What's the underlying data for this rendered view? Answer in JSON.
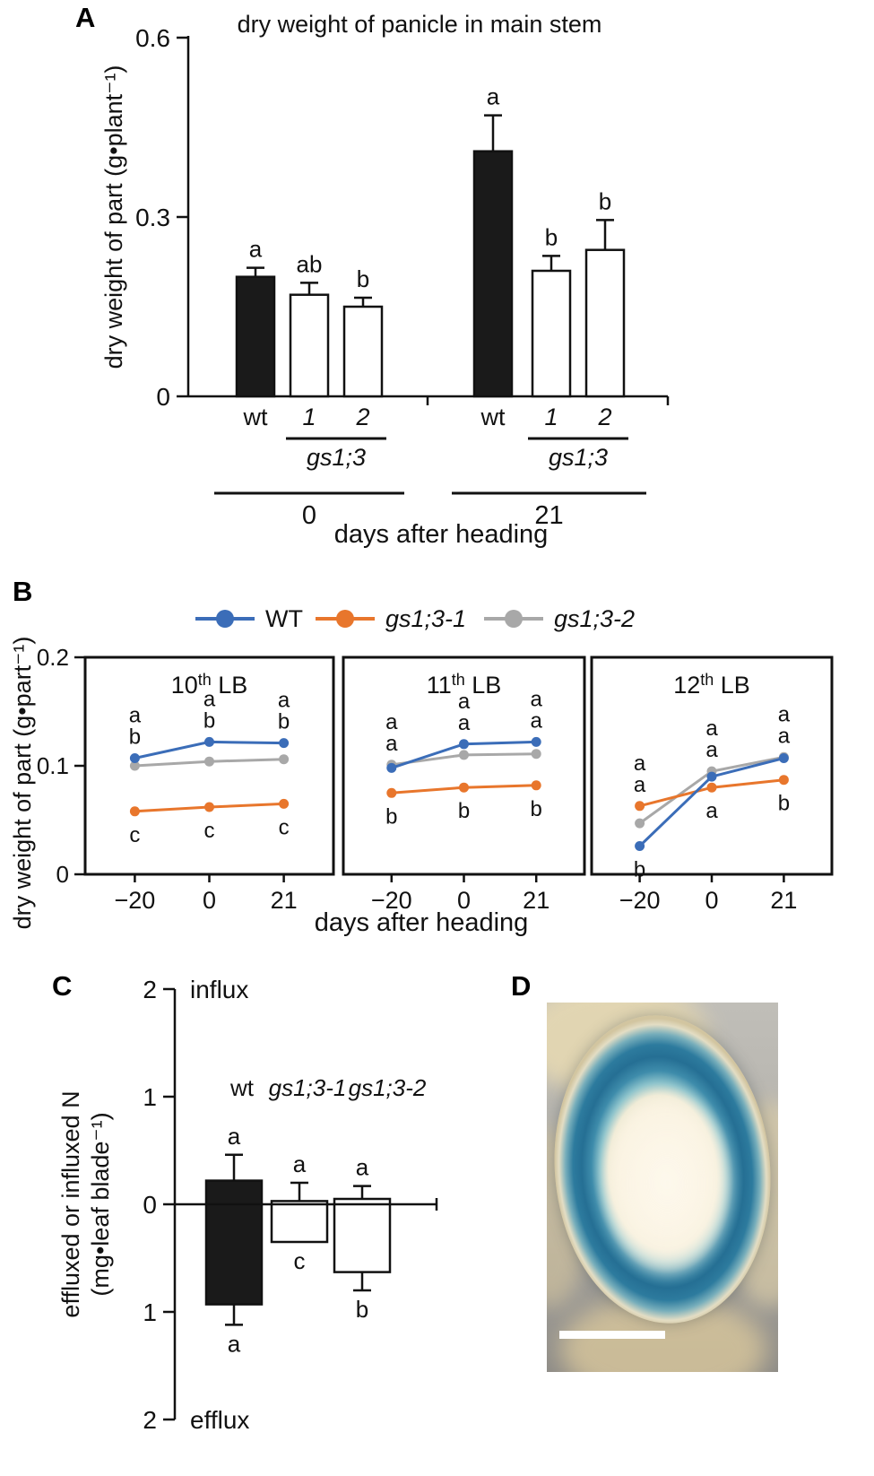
{
  "panel_labels": {
    "a": "A",
    "b": "B",
    "c": "C",
    "d": "D"
  },
  "chart_data": [
    {
      "id": "panelA",
      "type": "bar",
      "title": "dry weight of panicle in main stem",
      "ylabel": "dry weight of part (g•plant⁻¹)",
      "xlabel": "days after heading",
      "ylim": [
        0,
        0.6
      ],
      "yticks": [
        0,
        0.3,
        0.6
      ],
      "groups": [
        {
          "group_label": "0",
          "mutant_label": "gs1;3",
          "bars": [
            {
              "x_label": "wt",
              "italic": false,
              "value": 0.2,
              "error": 0.015,
              "letter": "a",
              "fill": "#1a1a1a"
            },
            {
              "x_label": "1",
              "italic": true,
              "value": 0.17,
              "error": 0.02,
              "letter": "ab",
              "fill": "#ffffff"
            },
            {
              "x_label": "2",
              "italic": true,
              "value": 0.15,
              "error": 0.015,
              "letter": "b",
              "fill": "#ffffff"
            }
          ]
        },
        {
          "group_label": "21",
          "mutant_label": "gs1;3",
          "bars": [
            {
              "x_label": "wt",
              "italic": false,
              "value": 0.41,
              "error": 0.06,
              "letter": "a",
              "fill": "#1a1a1a"
            },
            {
              "x_label": "1",
              "italic": true,
              "value": 0.21,
              "error": 0.025,
              "letter": "b",
              "fill": "#ffffff"
            },
            {
              "x_label": "2",
              "italic": true,
              "value": 0.245,
              "error": 0.05,
              "letter": "b",
              "fill": "#ffffff"
            }
          ]
        }
      ]
    },
    {
      "id": "panelB",
      "type": "line",
      "ylabel": "dry weight of part (g•part⁻¹)",
      "xlabel": "days after heading",
      "ylim": [
        0,
        0.2
      ],
      "yticks": [
        0,
        0.1,
        0.2
      ],
      "x": [
        -20,
        0,
        21
      ],
      "x_tick_labels": [
        "−20",
        "0",
        "21"
      ],
      "legend": [
        {
          "name": "WT",
          "color": "#3b6db8",
          "italic": false
        },
        {
          "name": "gs1;3-1",
          "color": "#e8762c",
          "italic": true
        },
        {
          "name": "gs1;3-2",
          "color": "#a8a8a8",
          "italic": true
        }
      ],
      "subpanels": [
        {
          "title_base": "10",
          "title_sup": "th",
          "title_rest": " LB",
          "series": [
            {
              "name": "WT",
              "color": "#3b6db8",
              "values": [
                0.107,
                0.122,
                0.121
              ]
            },
            {
              "name": "gs1;3-1",
              "color": "#e8762c",
              "values": [
                0.058,
                0.062,
                0.065
              ]
            },
            {
              "name": "gs1;3-2",
              "color": "#a8a8a8",
              "values": [
                0.1,
                0.104,
                0.106
              ]
            }
          ],
          "letters": [
            {
              "above": [
                "a",
                "b"
              ],
              "below": "c"
            },
            {
              "above": [
                "a",
                "b"
              ],
              "below": "c"
            },
            {
              "above": [
                "a",
                "b"
              ],
              "below": "c"
            }
          ]
        },
        {
          "title_base": "11",
          "title_sup": "th",
          "title_rest": " LB",
          "series": [
            {
              "name": "WT",
              "color": "#3b6db8",
              "values": [
                0.098,
                0.12,
                0.122
              ]
            },
            {
              "name": "gs1;3-1",
              "color": "#e8762c",
              "values": [
                0.075,
                0.08,
                0.082
              ]
            },
            {
              "name": "gs1;3-2",
              "color": "#a8a8a8",
              "values": [
                0.101,
                0.11,
                0.111
              ]
            }
          ],
          "letters": [
            {
              "above": [
                "a",
                "a"
              ],
              "below": "b"
            },
            {
              "above": [
                "a",
                "a"
              ],
              "below": "b"
            },
            {
              "above": [
                "a",
                "a"
              ],
              "below": "b"
            }
          ]
        },
        {
          "title_base": "12",
          "title_sup": "th",
          "title_rest": " LB",
          "series": [
            {
              "name": "WT",
              "color": "#3b6db8",
              "values": [
                0.026,
                0.09,
                0.107
              ]
            },
            {
              "name": "gs1;3-1",
              "color": "#e8762c",
              "values": [
                0.063,
                0.08,
                0.087
              ]
            },
            {
              "name": "gs1;3-2",
              "color": "#a8a8a8",
              "values": [
                0.047,
                0.095,
                0.108
              ]
            }
          ],
          "letters": [
            {
              "above": [
                "a",
                "a"
              ],
              "below": "b"
            },
            {
              "above": [
                "a",
                "a"
              ],
              "below": "a"
            },
            {
              "above": [
                "a",
                "a"
              ],
              "below": "b"
            }
          ]
        }
      ]
    },
    {
      "id": "panelC",
      "type": "bar",
      "ylabel_line1": "effluxed or influxed N",
      "ylabel_line2": "(mg•leaf blade⁻¹)",
      "top_axis_label": "influx",
      "bottom_axis_label": "efflux",
      "ylim": [
        -2,
        2
      ],
      "yticks": [
        2,
        1,
        0,
        -1,
        -2
      ],
      "ytick_labels": [
        "2",
        "1",
        "0",
        "1",
        "2"
      ],
      "bars": [
        {
          "name": "wt",
          "italic": false,
          "influx": 0.22,
          "efflux": -0.93,
          "influx_err_tip": 0.46,
          "efflux_err_tip": -1.12,
          "letter_top": "a",
          "letter_bottom": "a",
          "fill": "#1a1a1a"
        },
        {
          "name": "gs1;3-1",
          "italic": true,
          "influx": 0.03,
          "efflux": -0.35,
          "influx_err_tip": 0.2,
          "efflux_err_tip": null,
          "letter_top": "a",
          "letter_bottom": "c",
          "fill": "#ffffff"
        },
        {
          "name": "gs1;3-2",
          "italic": true,
          "influx": 0.05,
          "efflux": -0.63,
          "influx_err_tip": 0.17,
          "efflux_err_tip": -0.8,
          "letter_top": "a",
          "letter_bottom": "b",
          "fill": "#ffffff"
        }
      ]
    }
  ],
  "panelD": {
    "label": "D"
  }
}
